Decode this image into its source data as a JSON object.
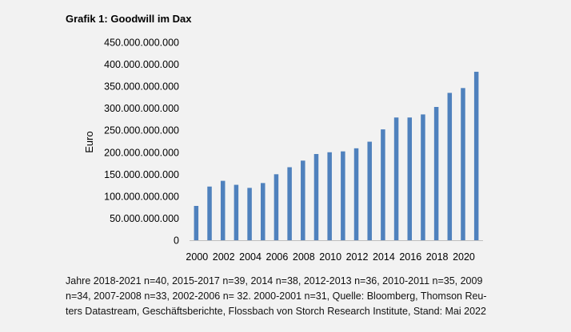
{
  "chart_data": {
    "type": "bar",
    "title": "Grafik 1: Goodwill im Dax",
    "xlabel": "",
    "ylabel": "Euro",
    "ylim": [
      0,
      450000000000
    ],
    "y_ticks": [
      0,
      50000000000,
      100000000000,
      150000000000,
      200000000000,
      250000000000,
      300000000000,
      350000000000,
      400000000000,
      450000000000
    ],
    "y_tick_labels": [
      "0",
      "50.000.000.000",
      "100.000.000.000",
      "150.000.000.000",
      "200.000.000.000",
      "250.000.000.000",
      "300.000.000.000",
      "350.000.000.000",
      "400.000.000.000",
      "450.000.000.000"
    ],
    "categories": [
      "2000",
      "2001",
      "2002",
      "2003",
      "2004",
      "2005",
      "2006",
      "2007",
      "2008",
      "2009",
      "2010",
      "2011",
      "2012",
      "2013",
      "2014",
      "2015",
      "2016",
      "2017",
      "2018",
      "2019",
      "2020",
      "2021"
    ],
    "x_tick_labels": [
      "2000",
      "",
      "2002",
      "",
      "2004",
      "",
      "2006",
      "",
      "2008",
      "",
      "2010",
      "",
      "2012",
      "",
      "2014",
      "",
      "2016",
      "",
      "2018",
      "",
      "2020",
      ""
    ],
    "values": [
      78000000000,
      122000000000,
      135000000000,
      126000000000,
      119000000000,
      130000000000,
      150000000000,
      166000000000,
      181000000000,
      196000000000,
      200000000000,
      202000000000,
      209000000000,
      224000000000,
      252000000000,
      279000000000,
      279000000000,
      286000000000,
      303000000000,
      335000000000,
      346000000000,
      383000000000
    ],
    "bar_color": "#4f81bd",
    "grid": false
  },
  "footnote": {
    "lines": [
      "Jahre 2018-2021 n=40, 2015-2017 n=39, 2014 n=38, 2012-2013 n=36, 2010-2011 n=35, 2009",
      "n=34,  2007-2008 n=33, 2002-2006 n= 32. 2000-2001 n=31, Quelle: Bloomberg, Thomson Reu-",
      "ters Datastream, Geschäftsberichte, Flossbach von Storch Research Institute, Stand: Mai 2022"
    ]
  }
}
